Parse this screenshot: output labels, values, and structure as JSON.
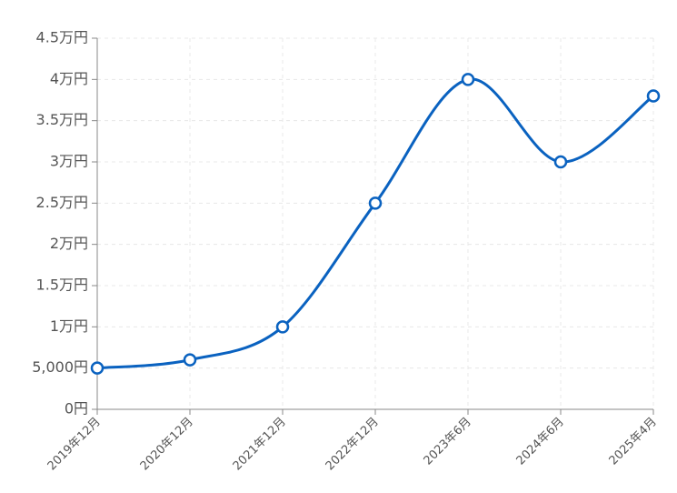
{
  "chart_data": {
    "type": "line",
    "categories": [
      "2019年12月",
      "2020年12月",
      "2021年12月",
      "2022年12月",
      "2023年6月",
      "2024年6月",
      "2025年4月"
    ],
    "values": [
      5000,
      6000,
      10000,
      25000,
      40000,
      30000,
      38000
    ],
    "color": "#0a62c0",
    "ylim": [
      0,
      45000
    ],
    "yticks": [
      {
        "value": 0,
        "label": "0円"
      },
      {
        "value": 5000,
        "label": "5,000円"
      },
      {
        "value": 10000,
        "label": "1万円"
      },
      {
        "value": 15000,
        "label": "1.5万円"
      },
      {
        "value": 20000,
        "label": "2万円"
      },
      {
        "value": 25000,
        "label": "2.5万円"
      },
      {
        "value": 30000,
        "label": "3万円"
      },
      {
        "value": 35000,
        "label": "3.5万円"
      },
      {
        "value": 40000,
        "label": "4万円"
      },
      {
        "value": 45000,
        "label": "4.5万円"
      }
    ],
    "grid": true,
    "smooth": true
  }
}
